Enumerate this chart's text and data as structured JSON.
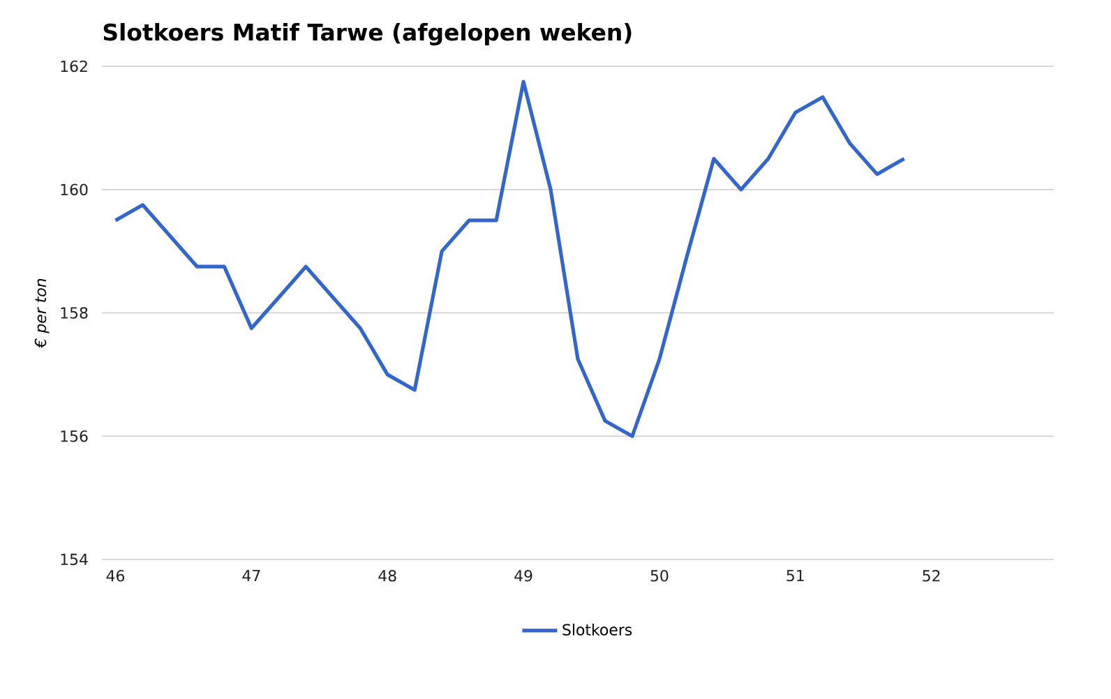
{
  "chart_data": {
    "type": "line",
    "title": "Slotkoers Matif Tarwe (afgelopen weken)",
    "ylabel": "€ per ton",
    "x": [
      46,
      46.2,
      46.4,
      46.6,
      46.8,
      47,
      47.2,
      47.4,
      47.6,
      47.8,
      48,
      48.2,
      48.4,
      48.6,
      48.8,
      49,
      49.2,
      49.4,
      49.6,
      49.8,
      50,
      50.2,
      50.4,
      50.6,
      50.8,
      51,
      51.2,
      51.4,
      51.6,
      51.8
    ],
    "series": [
      {
        "name": "Slotkoers",
        "color": "#3366cc",
        "values": [
          159.5,
          159.75,
          159.25,
          158.75,
          158.75,
          157.75,
          158.25,
          158.75,
          158.25,
          157.75,
          157,
          156.75,
          159,
          159.5,
          159.5,
          161.75,
          160,
          157.25,
          156.25,
          156,
          157.25,
          158.9,
          160.5,
          160,
          160.5,
          161.25,
          161.5,
          160.75,
          160.25,
          160.5
        ]
      }
    ],
    "xlim": [
      45.9,
      52.9
    ],
    "ylim": [
      154,
      162
    ],
    "xticks": [
      46,
      47,
      48,
      49,
      50,
      51,
      52
    ],
    "yticks": [
      154,
      156,
      158,
      160,
      162
    ],
    "grid": "y",
    "legend": "bottom",
    "marker": "none",
    "line_style": "solid"
  }
}
